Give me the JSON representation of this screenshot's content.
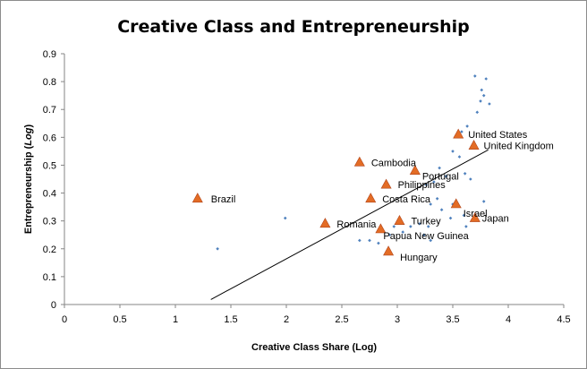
{
  "chart_data": {
    "type": "scatter",
    "title": "Creative Class and Entrepreneurship",
    "xlabel": "Creative Class Share (Log)",
    "ylabel": {
      "main": "Entrepreneurship (",
      "italic": "Log",
      "end": ")"
    },
    "xlim": [
      0,
      4.5
    ],
    "ylim": [
      0,
      0.9
    ],
    "x_ticks": [
      "0",
      "0.5",
      "1",
      "1.5",
      "2",
      "2.5",
      "3",
      "3.5",
      "4",
      "4.5"
    ],
    "y_ticks": [
      "0",
      "0.1",
      "0.2",
      "0.3",
      "0.4",
      "0.5",
      "0.6",
      "0.7",
      "0.8",
      "0.9"
    ],
    "grid": false,
    "legend": "none",
    "colors": {
      "highlight": "#e36c25",
      "highlight_stroke": "#b0441a",
      "other": "#4f81bd",
      "trend": "#000000"
    },
    "highlighted": [
      {
        "label": "Brazil",
        "x": 1.2,
        "y": 0.38
      },
      {
        "label": "Cambodia",
        "x": 2.66,
        "y": 0.51
      },
      {
        "label": "Portugal",
        "x": 3.16,
        "y": 0.48
      },
      {
        "label": "Philippines",
        "x": 2.9,
        "y": 0.43
      },
      {
        "label": "Costa Rica",
        "x": 2.76,
        "y": 0.38
      },
      {
        "label": "United States",
        "x": 3.55,
        "y": 0.61
      },
      {
        "label": "United Kingdom",
        "x": 3.69,
        "y": 0.57
      },
      {
        "label": "Romania",
        "x": 2.35,
        "y": 0.29
      },
      {
        "label": "Turkey",
        "x": 3.02,
        "y": 0.3
      },
      {
        "label": "Papua New Guinea",
        "x": 2.85,
        "y": 0.27
      },
      {
        "label": "Israel",
        "x": 3.53,
        "y": 0.36
      },
      {
        "label": "Japan",
        "x": 3.7,
        "y": 0.31
      },
      {
        "label": "Hungary",
        "x": 2.92,
        "y": 0.19
      }
    ],
    "other_points": [
      [
        1.38,
        0.2
      ],
      [
        1.99,
        0.31
      ],
      [
        2.66,
        0.23
      ],
      [
        2.75,
        0.23
      ],
      [
        2.83,
        0.22
      ],
      [
        2.93,
        0.25
      ],
      [
        2.97,
        0.28
      ],
      [
        3.05,
        0.26
      ],
      [
        3.12,
        0.28
      ],
      [
        3.2,
        0.29
      ],
      [
        3.28,
        0.28
      ],
      [
        3.3,
        0.23
      ],
      [
        3.24,
        0.25
      ],
      [
        3.3,
        0.36
      ],
      [
        3.36,
        0.38
      ],
      [
        3.4,
        0.34
      ],
      [
        3.48,
        0.31
      ],
      [
        3.5,
        0.36
      ],
      [
        3.6,
        0.32
      ],
      [
        3.62,
        0.28
      ],
      [
        3.78,
        0.37
      ],
      [
        3.26,
        0.43
      ],
      [
        3.33,
        0.44
      ],
      [
        3.38,
        0.49
      ],
      [
        3.44,
        0.46
      ],
      [
        3.56,
        0.53
      ],
      [
        3.61,
        0.47
      ],
      [
        3.66,
        0.45
      ],
      [
        3.5,
        0.55
      ],
      [
        3.58,
        0.62
      ],
      [
        3.63,
        0.64
      ],
      [
        3.72,
        0.69
      ],
      [
        3.75,
        0.73
      ],
      [
        3.78,
        0.75
      ],
      [
        3.76,
        0.77
      ],
      [
        3.83,
        0.72
      ],
      [
        3.7,
        0.82
      ],
      [
        3.8,
        0.81
      ]
    ],
    "trendline": {
      "x": [
        1.32,
        3.82
      ],
      "y": [
        0.018,
        0.555
      ]
    }
  }
}
